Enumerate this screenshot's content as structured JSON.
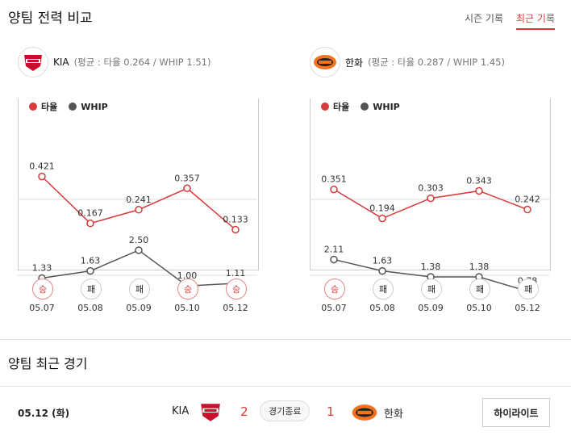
{
  "header": {
    "title": "양팀 전력 비교",
    "tabs": [
      {
        "label": "시즌 기록"
      },
      {
        "label": "최근 기록"
      }
    ]
  },
  "colors": {
    "avg": "#d63a3a",
    "whip": "#555555"
  },
  "teams": [
    {
      "name": "KIA",
      "avg_text": "(평균 : 타율 0.264 / WHIP 1.51)",
      "legend": {
        "avg": "타율",
        "whip": "WHIP"
      },
      "games": [
        {
          "date": "05.07",
          "result": "승",
          "avg": 0.421,
          "avg_label": "0.421",
          "whip": 1.33,
          "whip_label": "1.33"
        },
        {
          "date": "05.08",
          "result": "패",
          "avg": 0.167,
          "avg_label": "0.167",
          "whip": 1.63,
          "whip_label": "1.63"
        },
        {
          "date": "05.09",
          "result": "패",
          "avg": 0.241,
          "avg_label": "0.241",
          "whip": 2.5,
          "whip_label": "2.50"
        },
        {
          "date": "05.10",
          "result": "승",
          "avg": 0.357,
          "avg_label": "0.357",
          "whip": 1.0,
          "whip_label": "1.00"
        },
        {
          "date": "05.12",
          "result": "승",
          "avg": 0.133,
          "avg_label": "0.133",
          "whip": 1.11,
          "whip_label": "1.11"
        }
      ]
    },
    {
      "name": "한화",
      "avg_text": "(평균 : 타율 0.287 / WHIP 1.45)",
      "legend": {
        "avg": "타율",
        "whip": "WHIP"
      },
      "games": [
        {
          "date": "05.07",
          "result": "승",
          "avg": 0.351,
          "avg_label": "0.351",
          "whip": 2.11,
          "whip_label": "2.11"
        },
        {
          "date": "05.08",
          "result": "패",
          "avg": 0.194,
          "avg_label": "0.194",
          "whip": 1.63,
          "whip_label": "1.63"
        },
        {
          "date": "05.09",
          "result": "패",
          "avg": 0.303,
          "avg_label": "0.303",
          "whip": 1.38,
          "whip_label": "1.38"
        },
        {
          "date": "05.10",
          "result": "패",
          "avg": 0.343,
          "avg_label": "0.343",
          "whip": 1.38,
          "whip_label": "1.38"
        },
        {
          "date": "05.12",
          "result": "패",
          "avg": 0.242,
          "avg_label": "0.242",
          "whip": 0.78,
          "whip_label": "0.78"
        }
      ]
    }
  ],
  "recent": {
    "title": "양팀 최근 경기",
    "game": {
      "date": "05.12 (화)",
      "home": "KIA",
      "home_score": "2",
      "status": "경기종료",
      "away_score": "1",
      "away": "한화",
      "button": "하이라이트"
    }
  }
}
